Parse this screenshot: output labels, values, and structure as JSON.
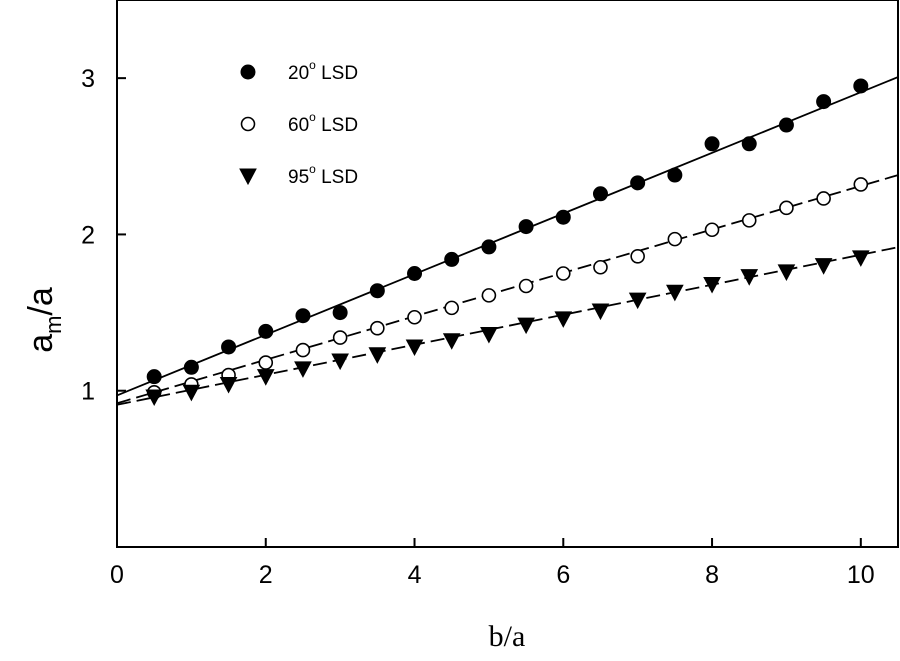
{
  "chart_data": {
    "type": "scatter",
    "xlabel": "b/a",
    "ylabel": {
      "main": "a",
      "sub": "m",
      "suffix": "/a"
    },
    "xlim": [
      0,
      10.5
    ],
    "ylim": [
      0,
      3.5
    ],
    "x_ticks": [
      0,
      2,
      4,
      6,
      8,
      10
    ],
    "y_ticks": [
      1,
      2,
      3
    ],
    "legend_position": "top-left",
    "series": [
      {
        "name": "20° LSD",
        "legend": {
          "prefix": "20",
          "sup": "o",
          "suffix": " LSD"
        },
        "marker": "filled-circle",
        "line_style": "solid",
        "fit": {
          "intercept": 0.97,
          "slope": 0.194
        },
        "x": [
          0.5,
          1,
          1.5,
          2,
          2.5,
          3,
          3.5,
          4,
          4.5,
          5,
          5.5,
          6,
          6.5,
          7,
          7.5,
          8,
          8.5,
          9,
          9.5,
          10
        ],
        "y": [
          1.09,
          1.15,
          1.28,
          1.38,
          1.48,
          1.5,
          1.64,
          1.75,
          1.84,
          1.92,
          2.05,
          2.11,
          2.26,
          2.33,
          2.38,
          2.58,
          2.58,
          2.7,
          2.85,
          2.95
        ]
      },
      {
        "name": "60° LSD",
        "legend": {
          "prefix": "60",
          "sup": "o",
          "suffix": " LSD"
        },
        "marker": "open-circle",
        "line_style": "dashed",
        "fit": {
          "intercept": 0.92,
          "slope": 0.139
        },
        "x": [
          0.5,
          1,
          1.5,
          2,
          2.5,
          3,
          3.5,
          4,
          4.5,
          5,
          5.5,
          6,
          6.5,
          7,
          7.5,
          8,
          8.5,
          9,
          9.5,
          10
        ],
        "y": [
          0.99,
          1.04,
          1.1,
          1.18,
          1.26,
          1.34,
          1.4,
          1.47,
          1.53,
          1.61,
          1.67,
          1.75,
          1.79,
          1.86,
          1.97,
          2.03,
          2.09,
          2.17,
          2.23,
          2.32
        ]
      },
      {
        "name": "95° LSD",
        "legend": {
          "prefix": "95",
          "sup": "o",
          "suffix": " LSD"
        },
        "marker": "filled-triangle-down",
        "line_style": "dashed",
        "fit": {
          "intercept": 0.91,
          "slope": 0.096
        },
        "x": [
          0.5,
          1,
          1.5,
          2,
          2.5,
          3,
          3.5,
          4,
          4.5,
          5,
          5.5,
          6,
          6.5,
          7,
          7.5,
          8,
          8.5,
          9,
          9.5,
          10
        ],
        "y": [
          0.96,
          0.99,
          1.04,
          1.09,
          1.14,
          1.19,
          1.23,
          1.28,
          1.32,
          1.36,
          1.42,
          1.46,
          1.51,
          1.58,
          1.63,
          1.68,
          1.73,
          1.76,
          1.8,
          1.85
        ]
      }
    ]
  }
}
